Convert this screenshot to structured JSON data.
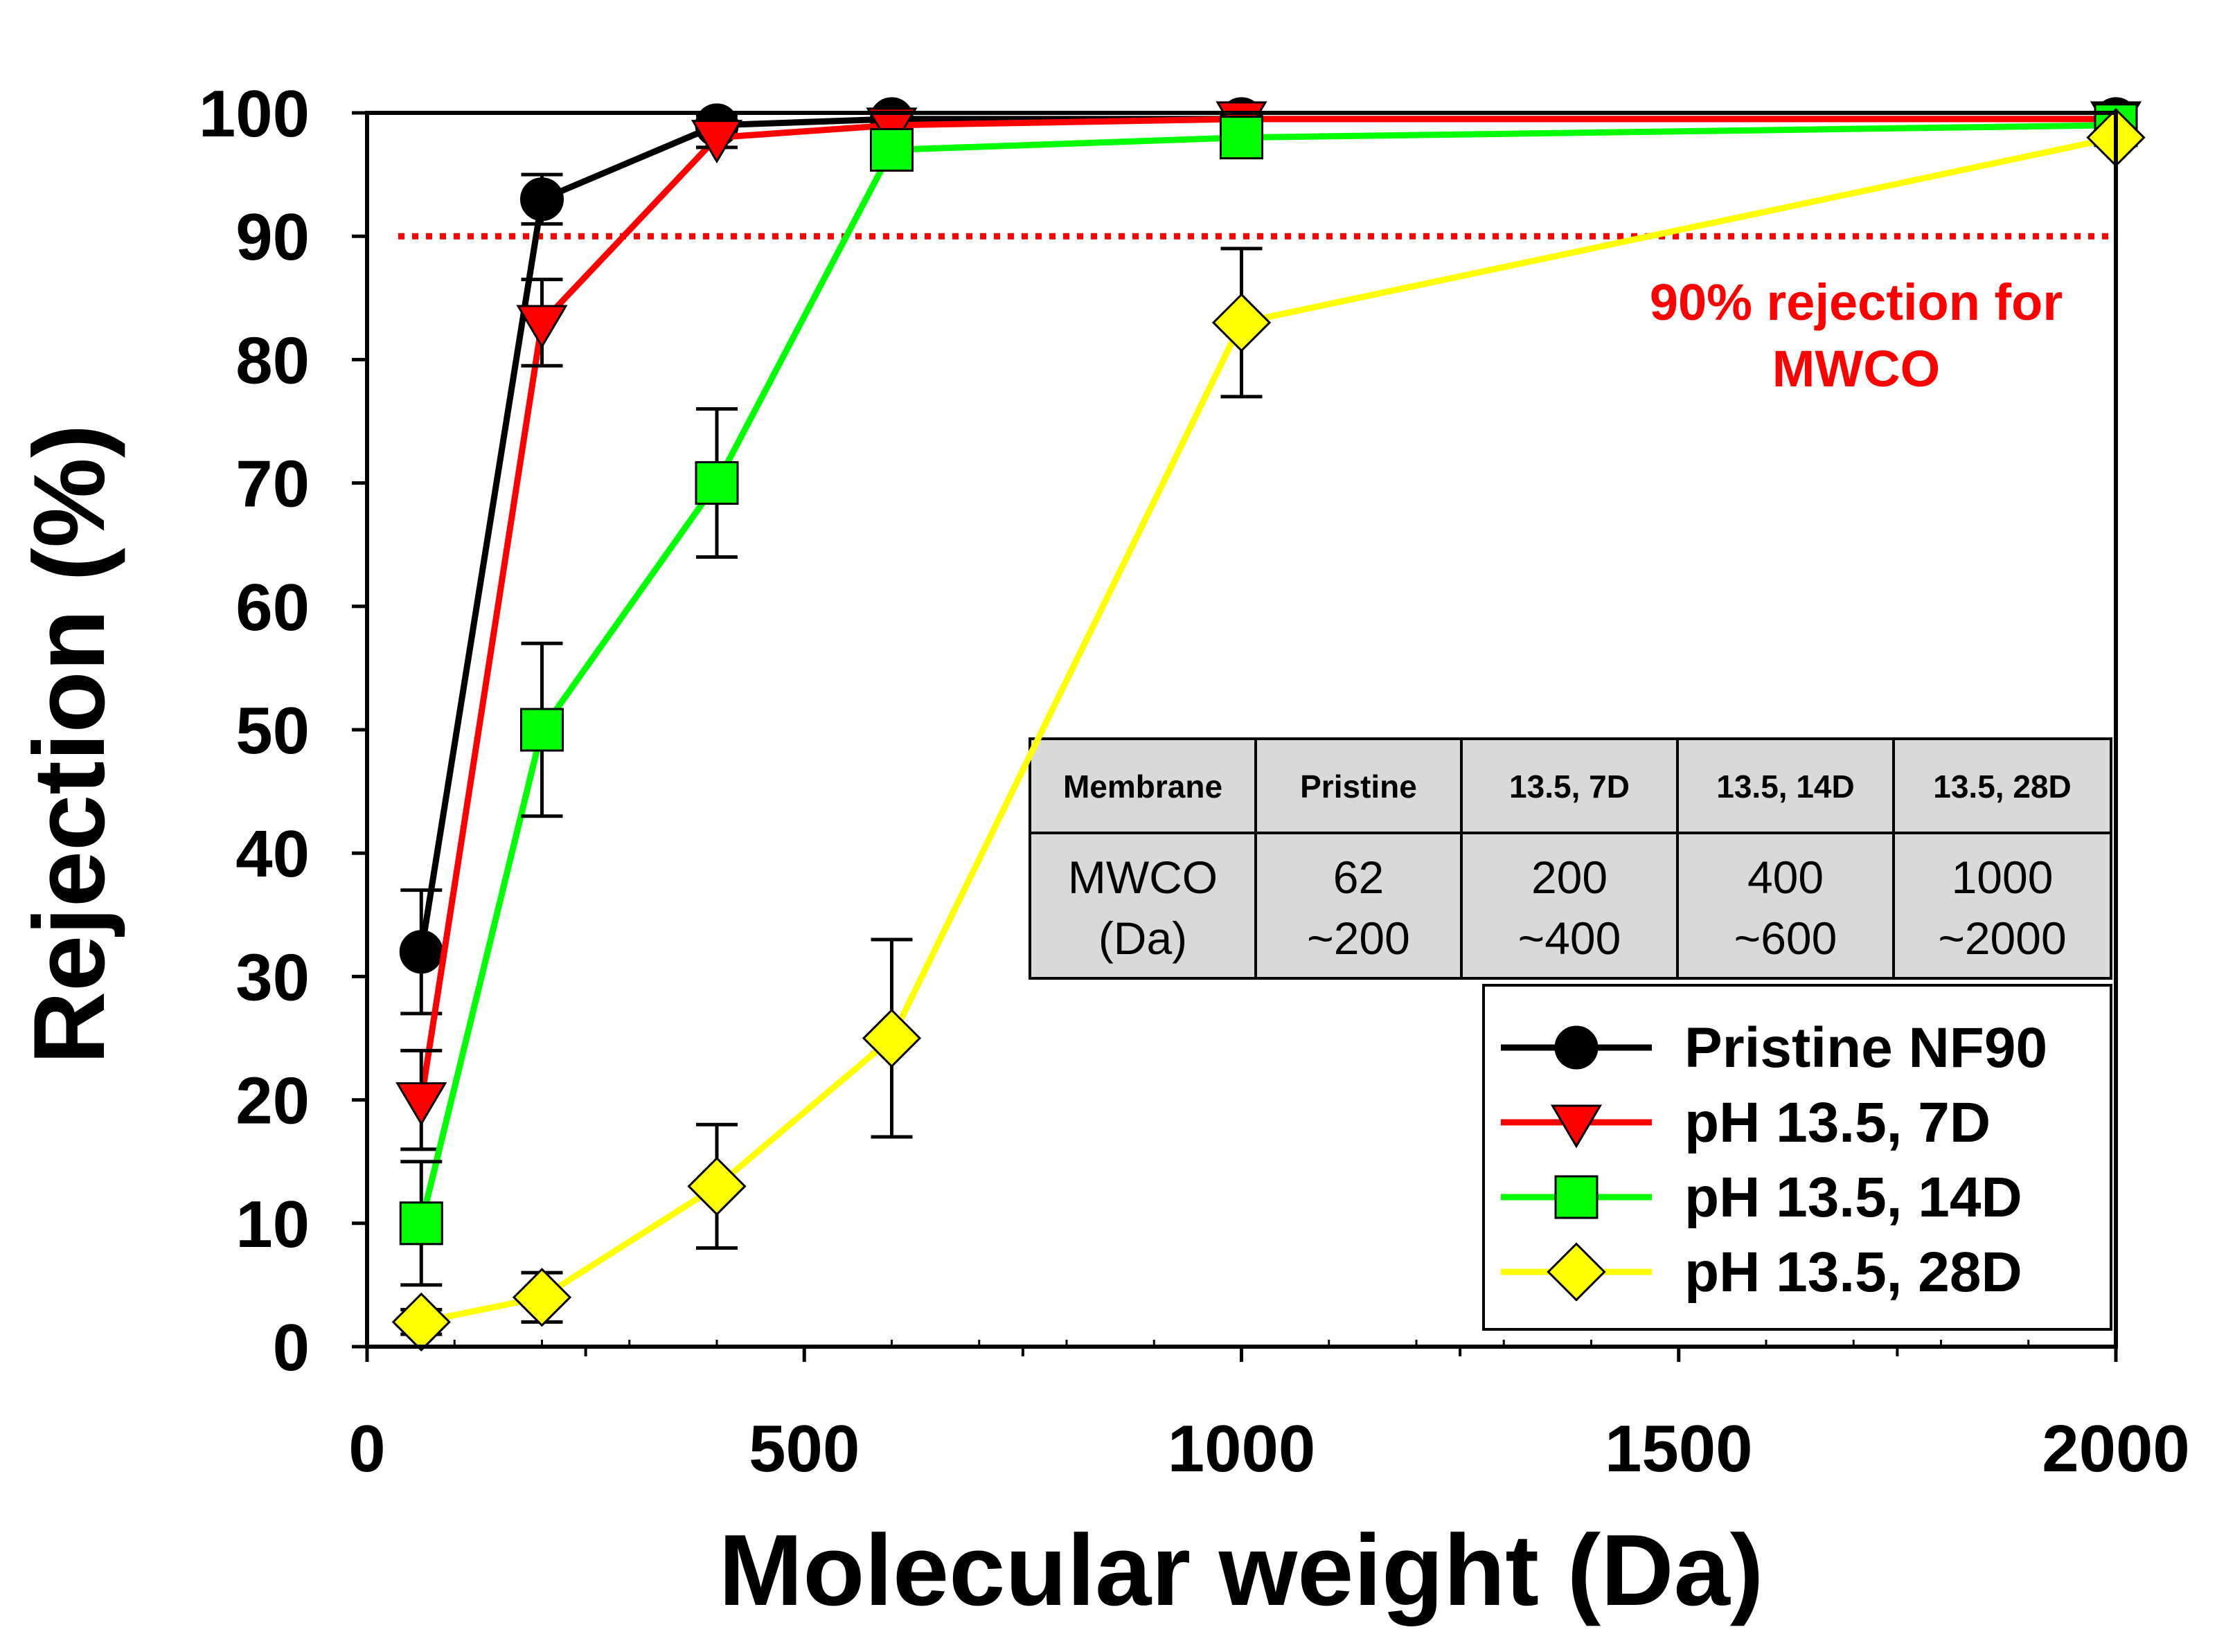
{
  "chart_data": {
    "type": "line",
    "title": "",
    "xlabel": "Molecular weight (Da)",
    "ylabel": "Rejection (%)",
    "xlim": [
      0,
      2000
    ],
    "ylim": [
      0,
      100
    ],
    "x_ticks": [
      0,
      500,
      1000,
      1500,
      2000
    ],
    "x_tick_labels": [
      "0",
      "500",
      "1000",
      "1500",
      "2000"
    ],
    "y_ticks": [
      0,
      10,
      20,
      30,
      40,
      50,
      60,
      70,
      80,
      90,
      100
    ],
    "y_tick_labels": [
      "0",
      "10",
      "20",
      "30",
      "40",
      "50",
      "60",
      "70",
      "80",
      "90",
      "100"
    ],
    "grid": false,
    "legend_position": "bottom-right",
    "series": [
      {
        "name": "Pristine NF90",
        "color": "#000000",
        "marker": "circle",
        "x": [
          62,
          200,
          400,
          600,
          1000,
          2000
        ],
        "values": [
          32,
          93,
          99,
          99.5,
          99.5,
          99.5
        ],
        "errors": [
          5,
          2,
          0.8,
          0,
          0,
          0
        ]
      },
      {
        "name": "pH 13.5, 7D",
        "color": "#ff0000",
        "marker": "triangle-down",
        "x": [
          62,
          200,
          400,
          600,
          1000,
          2000
        ],
        "values": [
          20,
          83,
          98,
          99,
          99.5,
          99.5
        ],
        "errors": [
          4,
          3.5,
          0.8,
          0,
          0,
          0
        ]
      },
      {
        "name": "pH 13.5, 14D",
        "color": "#00ff00",
        "marker": "square",
        "x": [
          62,
          200,
          400,
          600,
          1000,
          2000
        ],
        "values": [
          10,
          50,
          70,
          97,
          98,
          99
        ],
        "errors": [
          5,
          7,
          6,
          0,
          0,
          0
        ]
      },
      {
        "name": "pH 13.5, 28D",
        "color": "#ffff00",
        "marker": "diamond",
        "x": [
          62,
          200,
          400,
          600,
          1000,
          2000
        ],
        "values": [
          2,
          4,
          13,
          25,
          83,
          98
        ],
        "errors": [
          1,
          2,
          5,
          8,
          6,
          0
        ]
      }
    ],
    "reference_line": {
      "y": 90,
      "color": "#ff0000",
      "label_lines": [
        "90% rejection for",
        "MWCO"
      ]
    },
    "inset_table": {
      "header": [
        "Membrane",
        "Pristine",
        "13.5, 7D",
        "13.5, 14D",
        "13.5, 28D"
      ],
      "row_label": [
        "MWCO",
        "(Da)"
      ],
      "row_cells": [
        [
          "62",
          "~200"
        ],
        [
          "200",
          "~400"
        ],
        [
          "400",
          "~600"
        ],
        [
          "1000",
          "~2000"
        ]
      ]
    }
  }
}
